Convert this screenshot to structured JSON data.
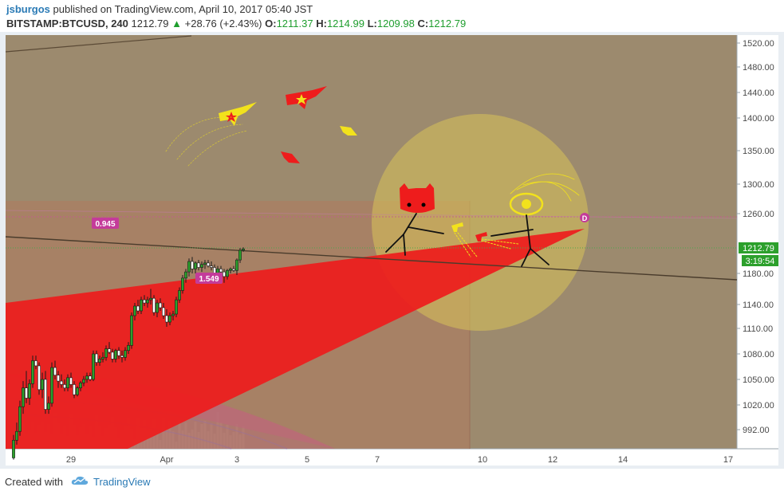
{
  "header": {
    "author": "jsburgos",
    "published_text": "published on TradingView.com, April 10, 2017 05:40 JST",
    "symbol": "BITSTAMP:BTCUSD, 240",
    "last": "1212.79",
    "change": "+28.76 (+2.43%)",
    "o_label": "O:",
    "o_value": "1211.37",
    "h_label": "H:",
    "h_value": "1214.99",
    "l_label": "L:",
    "l_value": "1209.98",
    "c_label": "C:",
    "c_value": "1212.79"
  },
  "footer": {
    "created_with": "Created with",
    "brand": "TradingView"
  },
  "chart_data": {
    "type": "candlestick",
    "price_ticks": [
      "1520.00",
      "1480.00",
      "1440.00",
      "1400.00",
      "1350.00",
      "1300.00",
      "1260.00",
      "1180.00",
      "1140.00",
      "1110.00",
      "1080.00",
      "1050.00",
      "1020.00",
      "992.00"
    ],
    "price_tick_values": [
      1520,
      1480,
      1440,
      1400,
      1350,
      1300,
      1260,
      1180,
      1140,
      1110,
      1080,
      1050,
      1020,
      992
    ],
    "time_ticks": [
      "29",
      "Apr",
      "3",
      "5",
      "7",
      "10",
      "12",
      "14",
      "17"
    ],
    "time_tick_index": [
      18,
      48,
      70,
      92,
      114,
      147,
      169,
      191,
      224
    ],
    "last_price_label": "1212.79",
    "last_price": 1212.79,
    "countdown_label": "3:19:54",
    "annotations": {
      "fib_top": "0.945",
      "fib_mid": "1.549",
      "marker": "D"
    },
    "colors": {
      "background": "#9c8a6e",
      "up": "#2ca02c",
      "down": "#e03030",
      "wedge": "#ee1c1c",
      "sun": "#d8c25a",
      "box": "#b07a5f"
    },
    "candles": [
      {
        "o": 960,
        "h": 986,
        "l": 958,
        "c": 980
      },
      {
        "o": 980,
        "h": 1000,
        "l": 975,
        "c": 990
      },
      {
        "o": 990,
        "h": 1025,
        "l": 985,
        "c": 1018
      },
      {
        "o": 1018,
        "h": 1048,
        "l": 1010,
        "c": 1040
      },
      {
        "o": 1040,
        "h": 1060,
        "l": 1022,
        "c": 1028
      },
      {
        "o": 1028,
        "h": 1050,
        "l": 1020,
        "c": 1045
      },
      {
        "o": 1045,
        "h": 1078,
        "l": 1040,
        "c": 1072
      },
      {
        "o": 1072,
        "h": 1078,
        "l": 1062,
        "c": 1066
      },
      {
        "o": 1066,
        "h": 1070,
        "l": 1032,
        "c": 1038
      },
      {
        "o": 1038,
        "h": 1058,
        "l": 1028,
        "c": 1050
      },
      {
        "o": 1050,
        "h": 1060,
        "l": 1010,
        "c": 1015
      },
      {
        "o": 1015,
        "h": 1030,
        "l": 1010,
        "c": 1022
      },
      {
        "o": 1022,
        "h": 1070,
        "l": 1018,
        "c": 1064
      },
      {
        "o": 1064,
        "h": 1072,
        "l": 1050,
        "c": 1055
      },
      {
        "o": 1055,
        "h": 1060,
        "l": 1040,
        "c": 1048
      },
      {
        "o": 1048,
        "h": 1056,
        "l": 1040,
        "c": 1044
      },
      {
        "o": 1044,
        "h": 1050,
        "l": 1036,
        "c": 1040
      },
      {
        "o": 1040,
        "h": 1056,
        "l": 1036,
        "c": 1052
      },
      {
        "o": 1052,
        "h": 1058,
        "l": 1040,
        "c": 1044
      },
      {
        "o": 1044,
        "h": 1048,
        "l": 1028,
        "c": 1032
      },
      {
        "o": 1032,
        "h": 1042,
        "l": 1030,
        "c": 1040
      },
      {
        "o": 1040,
        "h": 1048,
        "l": 1036,
        "c": 1046
      },
      {
        "o": 1046,
        "h": 1054,
        "l": 1042,
        "c": 1050
      },
      {
        "o": 1050,
        "h": 1058,
        "l": 1046,
        "c": 1054
      },
      {
        "o": 1054,
        "h": 1058,
        "l": 1048,
        "c": 1050
      },
      {
        "o": 1050,
        "h": 1084,
        "l": 1048,
        "c": 1080
      },
      {
        "o": 1080,
        "h": 1084,
        "l": 1066,
        "c": 1070
      },
      {
        "o": 1070,
        "h": 1078,
        "l": 1066,
        "c": 1074
      },
      {
        "o": 1074,
        "h": 1082,
        "l": 1070,
        "c": 1076
      },
      {
        "o": 1076,
        "h": 1090,
        "l": 1072,
        "c": 1086
      },
      {
        "o": 1086,
        "h": 1094,
        "l": 1080,
        "c": 1082
      },
      {
        "o": 1082,
        "h": 1086,
        "l": 1070,
        "c": 1074
      },
      {
        "o": 1074,
        "h": 1086,
        "l": 1070,
        "c": 1084
      },
      {
        "o": 1084,
        "h": 1088,
        "l": 1074,
        "c": 1078
      },
      {
        "o": 1078,
        "h": 1084,
        "l": 1070,
        "c": 1076
      },
      {
        "o": 1076,
        "h": 1088,
        "l": 1072,
        "c": 1084
      },
      {
        "o": 1084,
        "h": 1094,
        "l": 1080,
        "c": 1090
      },
      {
        "o": 1090,
        "h": 1130,
        "l": 1086,
        "c": 1126
      },
      {
        "o": 1126,
        "h": 1142,
        "l": 1120,
        "c": 1138
      },
      {
        "o": 1138,
        "h": 1146,
        "l": 1128,
        "c": 1132
      },
      {
        "o": 1132,
        "h": 1150,
        "l": 1128,
        "c": 1146
      },
      {
        "o": 1146,
        "h": 1152,
        "l": 1138,
        "c": 1142
      },
      {
        "o": 1142,
        "h": 1150,
        "l": 1136,
        "c": 1146
      },
      {
        "o": 1146,
        "h": 1160,
        "l": 1140,
        "c": 1148
      },
      {
        "o": 1148,
        "h": 1152,
        "l": 1126,
        "c": 1130
      },
      {
        "o": 1130,
        "h": 1146,
        "l": 1124,
        "c": 1142
      },
      {
        "o": 1142,
        "h": 1148,
        "l": 1132,
        "c": 1136
      },
      {
        "o": 1136,
        "h": 1142,
        "l": 1122,
        "c": 1126
      },
      {
        "o": 1126,
        "h": 1134,
        "l": 1112,
        "c": 1118
      },
      {
        "o": 1118,
        "h": 1130,
        "l": 1114,
        "c": 1126
      },
      {
        "o": 1126,
        "h": 1132,
        "l": 1120,
        "c": 1128
      },
      {
        "o": 1128,
        "h": 1150,
        "l": 1124,
        "c": 1146
      },
      {
        "o": 1146,
        "h": 1162,
        "l": 1142,
        "c": 1158
      },
      {
        "o": 1158,
        "h": 1178,
        "l": 1154,
        "c": 1174
      },
      {
        "o": 1174,
        "h": 1186,
        "l": 1168,
        "c": 1182
      },
      {
        "o": 1182,
        "h": 1200,
        "l": 1176,
        "c": 1196
      },
      {
        "o": 1196,
        "h": 1202,
        "l": 1180,
        "c": 1186
      },
      {
        "o": 1186,
        "h": 1196,
        "l": 1180,
        "c": 1194
      },
      {
        "o": 1194,
        "h": 1198,
        "l": 1184,
        "c": 1188
      },
      {
        "o": 1188,
        "h": 1196,
        "l": 1182,
        "c": 1192
      },
      {
        "o": 1192,
        "h": 1198,
        "l": 1186,
        "c": 1194
      },
      {
        "o": 1194,
        "h": 1198,
        "l": 1188,
        "c": 1190
      },
      {
        "o": 1190,
        "h": 1196,
        "l": 1184,
        "c": 1188
      },
      {
        "o": 1188,
        "h": 1192,
        "l": 1176,
        "c": 1180
      },
      {
        "o": 1180,
        "h": 1190,
        "l": 1176,
        "c": 1186
      },
      {
        "o": 1186,
        "h": 1190,
        "l": 1176,
        "c": 1182
      },
      {
        "o": 1182,
        "h": 1186,
        "l": 1168,
        "c": 1176
      },
      {
        "o": 1176,
        "h": 1186,
        "l": 1172,
        "c": 1184
      },
      {
        "o": 1184,
        "h": 1188,
        "l": 1180,
        "c": 1186
      },
      {
        "o": 1186,
        "h": 1190,
        "l": 1182,
        "c": 1184
      },
      {
        "o": 1184,
        "h": 1200,
        "l": 1178,
        "c": 1198
      },
      {
        "o": 1198,
        "h": 1214,
        "l": 1194,
        "c": 1211
      },
      {
        "o": 1211,
        "h": 1215,
        "l": 1209,
        "c": 1212.79
      }
    ]
  }
}
